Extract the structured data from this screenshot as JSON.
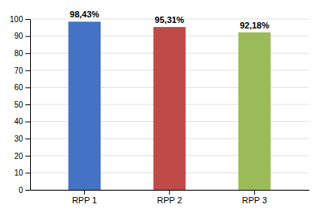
{
  "chart_data": {
    "type": "bar",
    "categories": [
      "RPP 1",
      "RPP 2",
      "RPP 3"
    ],
    "values": [
      98.43,
      95.31,
      92.18
    ],
    "value_labels": [
      "98,43%",
      "95,31%",
      "92,18%"
    ],
    "colors": [
      "#4472C4",
      "#BE4B48",
      "#9BBB59"
    ],
    "ylim": [
      0,
      100
    ],
    "yticks": [
      0,
      10,
      20,
      30,
      40,
      50,
      60,
      70,
      80,
      90,
      100
    ],
    "grid": true,
    "data_labels": true
  }
}
